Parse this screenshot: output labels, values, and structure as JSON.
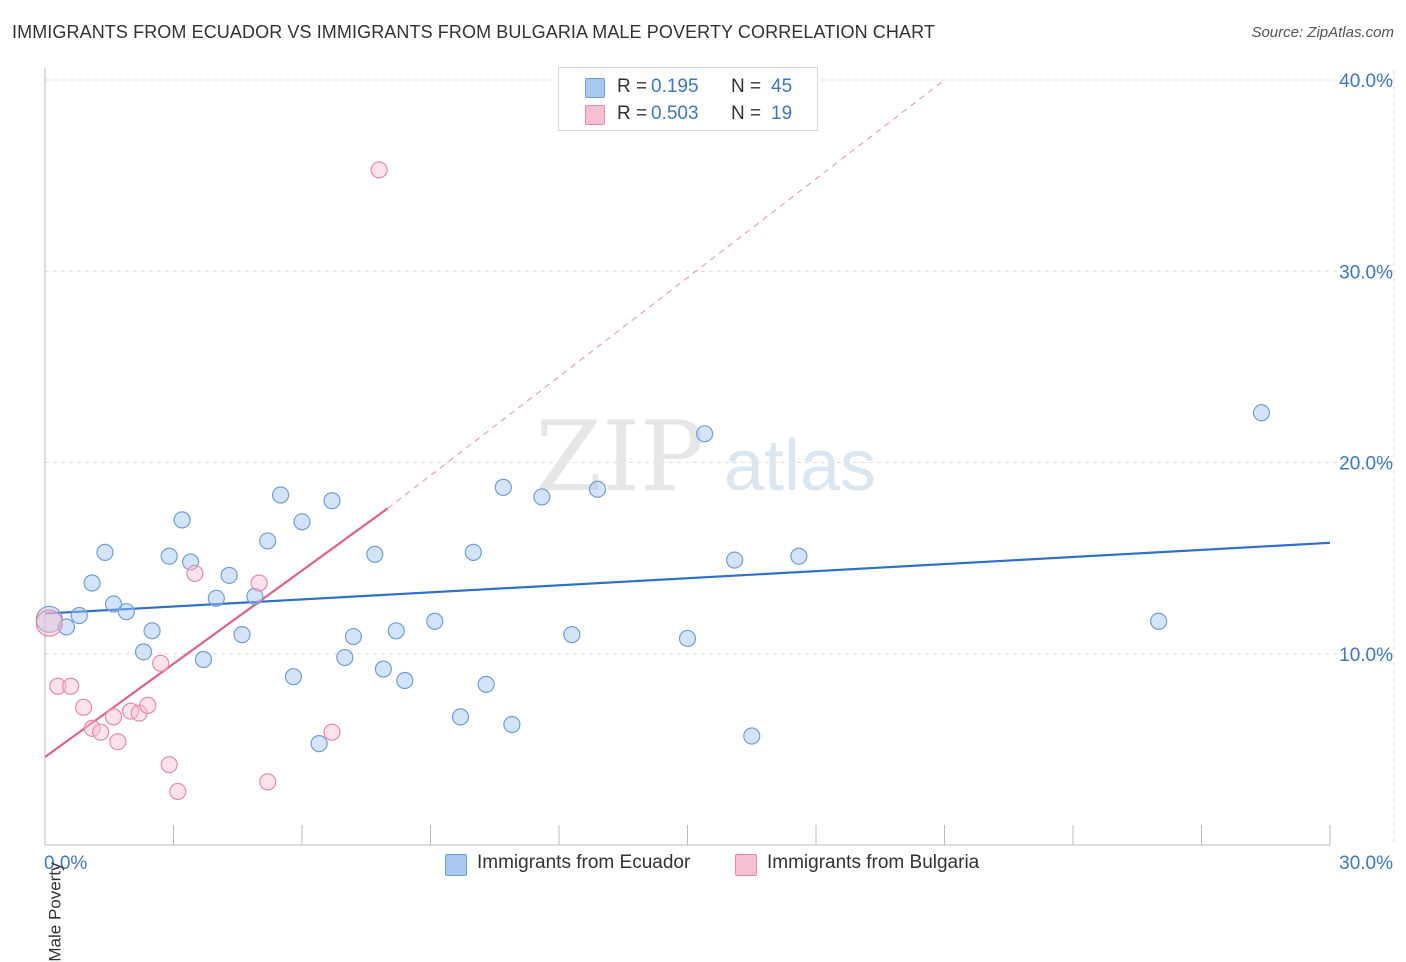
{
  "header": {
    "title": "IMMIGRANTS FROM ECUADOR VS IMMIGRANTS FROM BULGARIA MALE POVERTY CORRELATION CHART",
    "source": "Source: ZipAtlas.com"
  },
  "watermark": {
    "part1": "ZIP",
    "part2": "atlas"
  },
  "legend": {
    "rows": [
      {
        "r_label": "R =",
        "r_value": "0.195",
        "n_label": "N =",
        "n_value": "45",
        "color": "#a8c8f0",
        "border": "#6f9fd8"
      },
      {
        "r_label": "R =",
        "r_value": "0.503",
        "n_label": "N =",
        "n_value": "19",
        "color": "#f8bfd0",
        "border": "#e88aa8"
      }
    ]
  },
  "colors": {
    "ecuador_fill": "rgba(160,196,240,0.45)",
    "ecuador_stroke": "#6f9fd8",
    "ecuador_line": "#2f6fce",
    "bulgaria_fill": "rgba(248,190,208,0.45)",
    "bulgaria_stroke": "#e88aa8",
    "bulgaria_line": "#e2608a",
    "axis_label": "#3a78c9",
    "grid": "#dddddd"
  },
  "chart_data": {
    "type": "scatter",
    "title": "IMMIGRANTS FROM ECUADOR VS IMMIGRANTS FROM BULGARIA MALE POVERTY CORRELATION CHART",
    "xlabel": "",
    "ylabel": "Male Poverty",
    "xlim": [
      0,
      30
    ],
    "ylim": [
      0,
      40
    ],
    "x_tick_labels": [
      "0.0%",
      "30.0%"
    ],
    "y_ticks": [
      10,
      20,
      30,
      40
    ],
    "y_tick_labels": [
      "10.0%",
      "20.0%",
      "30.0%",
      "40.0%"
    ],
    "series": [
      {
        "name": "Immigrants from Ecuador",
        "R": 0.195,
        "N": 45,
        "trend": {
          "x0": 0,
          "y0": 12.1,
          "x1": 30,
          "y1": 15.8
        },
        "points": [
          [
            0.1,
            11.8
          ],
          [
            0.5,
            11.4
          ],
          [
            0.8,
            12.0
          ],
          [
            1.1,
            13.7
          ],
          [
            1.4,
            15.3
          ],
          [
            1.6,
            12.6
          ],
          [
            1.9,
            12.2
          ],
          [
            2.3,
            10.1
          ],
          [
            2.5,
            11.2
          ],
          [
            2.9,
            15.1
          ],
          [
            3.2,
            17.0
          ],
          [
            3.4,
            14.8
          ],
          [
            3.7,
            9.7
          ],
          [
            4.0,
            12.9
          ],
          [
            4.3,
            14.1
          ],
          [
            4.6,
            11.0
          ],
          [
            4.9,
            13.0
          ],
          [
            5.2,
            15.9
          ],
          [
            5.5,
            18.3
          ],
          [
            5.8,
            8.8
          ],
          [
            6.0,
            16.9
          ],
          [
            6.4,
            5.3
          ],
          [
            6.7,
            18.0
          ],
          [
            7.0,
            9.8
          ],
          [
            7.2,
            10.9
          ],
          [
            7.7,
            15.2
          ],
          [
            7.9,
            9.2
          ],
          [
            8.2,
            11.2
          ],
          [
            8.4,
            8.6
          ],
          [
            9.1,
            11.7
          ],
          [
            9.7,
            6.7
          ],
          [
            10.0,
            15.3
          ],
          [
            10.3,
            8.4
          ],
          [
            10.7,
            18.7
          ],
          [
            10.9,
            6.3
          ],
          [
            11.6,
            18.2
          ],
          [
            12.3,
            11.0
          ],
          [
            12.9,
            18.6
          ],
          [
            15.0,
            10.8
          ],
          [
            15.4,
            21.5
          ],
          [
            16.1,
            14.9
          ],
          [
            16.5,
            5.7
          ],
          [
            17.6,
            15.1
          ],
          [
            26.0,
            11.7
          ],
          [
            28.4,
            22.6
          ]
        ]
      },
      {
        "name": "Immigrants from Bulgaria",
        "R": 0.503,
        "N": 19,
        "trend": {
          "x0": 0,
          "y0": 4.6,
          "x1": 8.0,
          "y1": 17.6
        },
        "trend_extension": {
          "x0": 8.0,
          "y0": 17.6,
          "x1": 21.0,
          "y1": 40.0
        },
        "points": [
          [
            0.1,
            11.6
          ],
          [
            0.3,
            8.3
          ],
          [
            0.6,
            8.3
          ],
          [
            0.9,
            7.2
          ],
          [
            1.1,
            6.1
          ],
          [
            1.3,
            5.9
          ],
          [
            1.6,
            6.7
          ],
          [
            1.7,
            5.4
          ],
          [
            2.0,
            7.0
          ],
          [
            2.2,
            6.9
          ],
          [
            2.4,
            7.3
          ],
          [
            2.7,
            9.5
          ],
          [
            2.9,
            4.2
          ],
          [
            3.1,
            2.8
          ],
          [
            3.5,
            14.2
          ],
          [
            5.0,
            13.7
          ],
          [
            5.2,
            3.3
          ],
          [
            6.7,
            5.9
          ],
          [
            7.8,
            35.3
          ]
        ]
      }
    ]
  },
  "bottom_legend": [
    {
      "label": "Immigrants from Ecuador",
      "color": "#a8c8f0",
      "border": "#6f9fd8"
    },
    {
      "label": "Immigrants from Bulgaria",
      "color": "#f8bfd0",
      "border": "#e88aa8"
    }
  ]
}
